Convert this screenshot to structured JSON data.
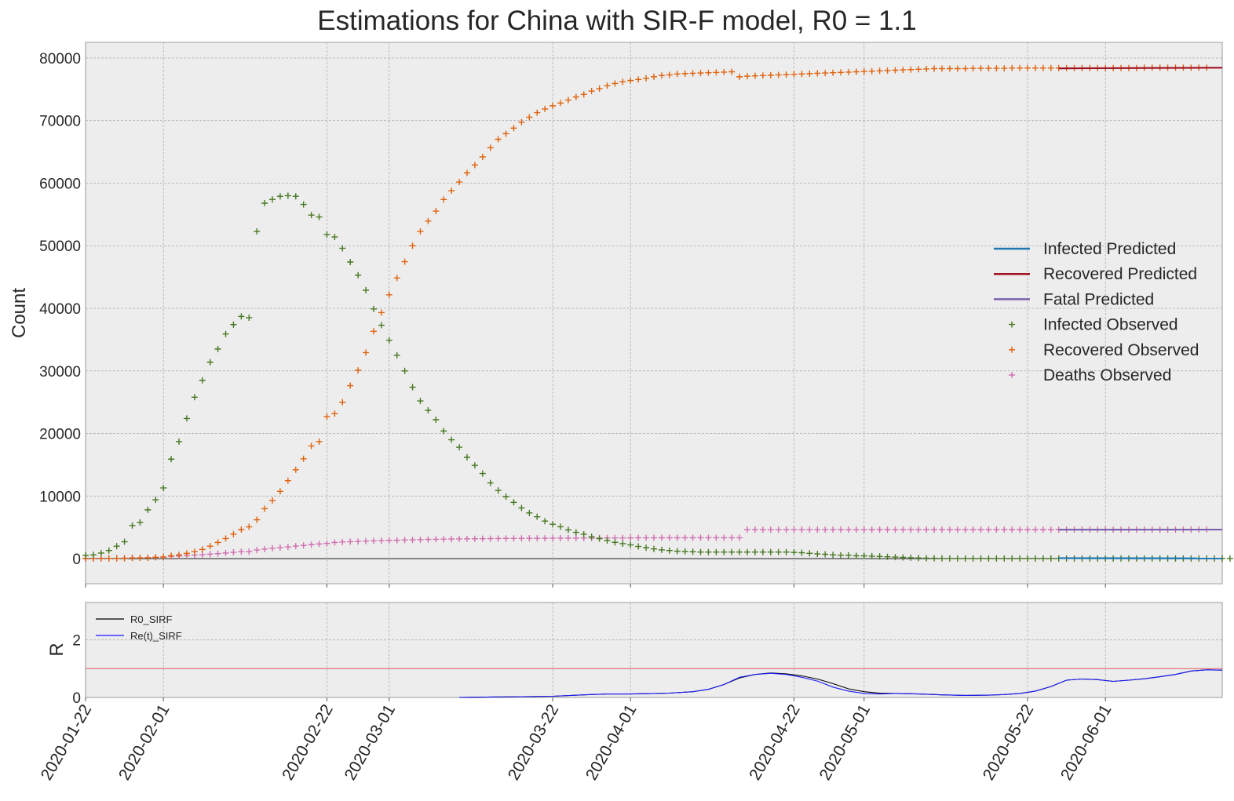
{
  "title": "Estimations for China with SIR-F model, R0 = 1.1",
  "chart_data": [
    {
      "type": "scatter",
      "ylabel": "Count",
      "ylim": [
        -4000,
        82500
      ],
      "yticks": [
        0,
        10000,
        20000,
        30000,
        40000,
        50000,
        60000,
        70000,
        80000
      ],
      "x_start": "2020-01-22",
      "x_end": "2020-06-16",
      "x_end_note_hidden": true,
      "xtick_dates": [
        "2020-01-22",
        "2020-02-01",
        "2020-02-22",
        "2020-03-01",
        "2020-03-22",
        "2020-04-01",
        "2020-04-22",
        "2020-05-01",
        "2020-05-22",
        "2020-06-01"
      ],
      "grid": true,
      "legend_position": "right",
      "legend": [
        {
          "label": "Infected Predicted",
          "kind": "line",
          "color": "#1f77b4"
        },
        {
          "label": "Recovered Predicted",
          "kind": "line",
          "color": "#a00f22"
        },
        {
          "label": "Fatal Predicted",
          "kind": "line",
          "color": "#7b63b0"
        },
        {
          "label": "Infected Observed",
          "kind": "marker",
          "color": "#467821"
        },
        {
          "label": "Recovered Observed",
          "kind": "marker",
          "color": "#e0620d"
        },
        {
          "label": "Deaths Observed",
          "kind": "marker",
          "color": "#d16eb0"
        }
      ],
      "observed_start_date": "2020-01-22",
      "infected_observed": [
        510,
        600,
        900,
        1300,
        2000,
        2700,
        5300,
        5800,
        7800,
        9400,
        11300,
        15900,
        18700,
        22400,
        25800,
        28500,
        31400,
        33500,
        35900,
        37400,
        38700,
        38500,
        52300,
        56800,
        57400,
        57900,
        58000,
        57900,
        56600,
        54900,
        54600,
        51800,
        51400,
        49600,
        47400,
        45300,
        42900,
        39900,
        37300,
        34900,
        32500,
        30000,
        27400,
        25200,
        23700,
        22200,
        20400,
        19000,
        17800,
        16200,
        14900,
        13600,
        12100,
        10900,
        9900,
        9000,
        8100,
        7300,
        6700,
        6000,
        5500,
        5100,
        4600,
        4200,
        3900,
        3500,
        3200,
        2900,
        2600,
        2400,
        2200,
        1950,
        1750,
        1550,
        1400,
        1300,
        1200,
        1150,
        1100,
        1050,
        1050,
        1050,
        1050,
        1050,
        1050,
        1050,
        1050,
        1050,
        1050,
        1050,
        1050,
        1000,
        950,
        850,
        750,
        700,
        600,
        550,
        550,
        450,
        450,
        400,
        350,
        300,
        250,
        200,
        150,
        110,
        80,
        60,
        40,
        30,
        30,
        30,
        30,
        30,
        30,
        30,
        30,
        30,
        30,
        30,
        30,
        30,
        30,
        30,
        30,
        30,
        30,
        30,
        30,
        30,
        30,
        30,
        30,
        30,
        30,
        30,
        30,
        30,
        30,
        30,
        30,
        30,
        30,
        30,
        30,
        30
      ],
      "recovered_observed": [
        28,
        30,
        36,
        39,
        49,
        58,
        101,
        120,
        135,
        214,
        275,
        463,
        614,
        843,
        1115,
        1476,
        1998,
        2595,
        3218,
        3918,
        4635,
        5082,
        6217,
        7977,
        9298,
        10755,
        12462,
        14206,
        15962,
        18014,
        18704,
        22699,
        23170,
        24990,
        27650,
        30084,
        32930,
        36329,
        39320,
        42162,
        44854,
        47450,
        50001,
        52292,
        53944,
        55539,
        57388,
        58804,
        60181,
        61644,
        62901,
        64196,
        65660,
        67017,
        67910,
        68798,
        69755,
        70535,
        71266,
        71857,
        72362,
        72814,
        73280,
        73773,
        74181,
        74720,
        75100,
        75582,
        75923,
        76206,
        76405,
        76565,
        76760,
        77000,
        77200,
        77300,
        77450,
        77500,
        77550,
        77600,
        77650,
        77700,
        77750,
        77800,
        77000,
        77100,
        77150,
        77200,
        77250,
        77300,
        77350,
        77400,
        77450,
        77500,
        77550,
        77600,
        77650,
        77700,
        77750,
        77800,
        77850,
        77900,
        77950,
        78000,
        78050,
        78100,
        78150,
        78200,
        78250,
        78300,
        78300,
        78300,
        78300,
        78300,
        78350,
        78350,
        78350,
        78350,
        78350,
        78400,
        78400,
        78400,
        78400,
        78400,
        78400,
        78400,
        78400,
        78400,
        78400,
        78400,
        78400,
        78400,
        78400,
        78400,
        78400,
        78400,
        78450,
        78450,
        78450,
        78450,
        78450,
        78450,
        78450,
        78450,
        78450
      ],
      "deaths_observed": [
        17,
        18,
        26,
        42,
        56,
        82,
        131,
        133,
        171,
        213,
        259,
        361,
        425,
        490,
        562,
        632,
        717,
        804,
        904,
        1011,
        1111,
        1111,
        1380,
        1523,
        1665,
        1770,
        1868,
        2004,
        2118,
        2236,
        2345,
        2442,
        2592,
        2663,
        2715,
        2744,
        2788,
        2835,
        2870,
        2912,
        2943,
        2981,
        3012,
        3042,
        3070,
        3097,
        3119,
        3136,
        3158,
        3169,
        3176,
        3189,
        3199,
        3213,
        3226,
        3237,
        3245,
        3249,
        3253,
        3259,
        3274,
        3274,
        3281,
        3285,
        3291,
        3296,
        3299,
        3304,
        3308,
        3309,
        3316,
        3322,
        3326,
        3330,
        3333,
        3335,
        3335,
        3337,
        3339,
        3340,
        3340,
        3340,
        3340,
        3340,
        3340,
        4632,
        4632,
        4632,
        4632,
        4632,
        4632,
        4632,
        4632,
        4632,
        4632,
        4632,
        4632,
        4632,
        4632,
        4632,
        4632,
        4633,
        4633,
        4633,
        4633,
        4633,
        4633,
        4633,
        4633,
        4633,
        4633,
        4634,
        4634,
        4634,
        4634,
        4634,
        4634,
        4634,
        4634,
        4634,
        4634,
        4634,
        4634,
        4634,
        4634,
        4634,
        4634,
        4634,
        4634,
        4634,
        4634,
        4634,
        4634,
        4634,
        4634,
        4634,
        4634,
        4634,
        4634,
        4634,
        4634,
        4634,
        4634,
        4634,
        4634
      ],
      "predicted_start_date": "2020-05-26",
      "infected_predicted": [
        {
          "date": "2020-05-26",
          "value": 80
        },
        {
          "date": "2020-06-16",
          "value": 40
        }
      ],
      "recovered_predicted": [
        {
          "date": "2020-05-26",
          "value": 78350
        },
        {
          "date": "2020-06-16",
          "value": 78450
        }
      ],
      "fatal_predicted": [
        {
          "date": "2020-05-26",
          "value": 4634
        },
        {
          "date": "2020-06-16",
          "value": 4640
        }
      ]
    },
    {
      "type": "line",
      "ylabel": "R",
      "ylim": [
        0,
        3.3
      ],
      "yticks": [
        0,
        2
      ],
      "grid": true,
      "legend_position": "top-left",
      "threshold_value": 1.0,
      "threshold_color": "#e06a6a",
      "series": [
        {
          "name": "R0_SIRF",
          "color": "#000000",
          "points": [
            [
              "2020-03-10",
              0.0
            ],
            [
              "2020-03-22",
              0.04
            ],
            [
              "2020-03-26",
              0.09
            ],
            [
              "2020-03-29",
              0.12
            ],
            [
              "2020-04-01",
              0.12
            ],
            [
              "2020-04-03",
              0.13
            ],
            [
              "2020-04-06",
              0.15
            ],
            [
              "2020-04-09",
              0.2
            ],
            [
              "2020-04-11",
              0.28
            ],
            [
              "2020-04-13",
              0.45
            ],
            [
              "2020-04-15",
              0.68
            ],
            [
              "2020-04-17",
              0.8
            ],
            [
              "2020-04-19",
              0.85
            ],
            [
              "2020-04-21",
              0.82
            ],
            [
              "2020-04-23",
              0.75
            ],
            [
              "2020-04-25",
              0.64
            ],
            [
              "2020-04-27",
              0.48
            ],
            [
              "2020-04-29",
              0.3
            ],
            [
              "2020-05-01",
              0.2
            ],
            [
              "2020-05-03",
              0.15
            ],
            [
              "2020-05-05",
              0.14
            ],
            [
              "2020-05-08",
              0.12
            ],
            [
              "2020-05-11",
              0.09
            ],
            [
              "2020-05-14",
              0.07
            ],
            [
              "2020-05-17",
              0.08
            ],
            [
              "2020-05-19",
              0.1
            ],
            [
              "2020-05-21",
              0.14
            ],
            [
              "2020-05-23",
              0.22
            ],
            [
              "2020-05-25",
              0.38
            ],
            [
              "2020-05-27",
              0.6
            ],
            [
              "2020-05-29",
              0.64
            ],
            [
              "2020-05-31",
              0.62
            ],
            [
              "2020-06-02",
              0.56
            ],
            [
              "2020-06-04",
              0.6
            ],
            [
              "2020-06-06",
              0.65
            ],
            [
              "2020-06-08",
              0.72
            ],
            [
              "2020-06-10",
              0.8
            ],
            [
              "2020-06-12",
              0.92
            ],
            [
              "2020-06-14",
              0.96
            ],
            [
              "2020-06-16",
              0.95
            ]
          ]
        },
        {
          "name": "Re(t)_SIRF",
          "color": "#1a1aff",
          "points": [
            [
              "2020-03-10",
              0.0
            ],
            [
              "2020-03-22",
              0.04
            ],
            [
              "2020-03-26",
              0.09
            ],
            [
              "2020-03-29",
              0.12
            ],
            [
              "2020-04-01",
              0.12
            ],
            [
              "2020-04-03",
              0.13
            ],
            [
              "2020-04-06",
              0.15
            ],
            [
              "2020-04-09",
              0.2
            ],
            [
              "2020-04-11",
              0.28
            ],
            [
              "2020-04-13",
              0.45
            ],
            [
              "2020-04-15",
              0.7
            ],
            [
              "2020-04-17",
              0.8
            ],
            [
              "2020-04-19",
              0.84
            ],
            [
              "2020-04-21",
              0.8
            ],
            [
              "2020-04-23",
              0.7
            ],
            [
              "2020-04-25",
              0.57
            ],
            [
              "2020-04-27",
              0.36
            ],
            [
              "2020-04-29",
              0.22
            ],
            [
              "2020-05-01",
              0.14
            ],
            [
              "2020-05-03",
              0.12
            ],
            [
              "2020-05-05",
              0.14
            ],
            [
              "2020-05-08",
              0.12
            ],
            [
              "2020-05-11",
              0.09
            ],
            [
              "2020-05-14",
              0.07
            ],
            [
              "2020-05-17",
              0.08
            ],
            [
              "2020-05-19",
              0.1
            ],
            [
              "2020-05-21",
              0.14
            ],
            [
              "2020-05-23",
              0.22
            ],
            [
              "2020-05-25",
              0.38
            ],
            [
              "2020-05-27",
              0.6
            ],
            [
              "2020-05-29",
              0.64
            ],
            [
              "2020-05-31",
              0.62
            ],
            [
              "2020-06-02",
              0.56
            ],
            [
              "2020-06-04",
              0.6
            ],
            [
              "2020-06-06",
              0.65
            ],
            [
              "2020-06-08",
              0.72
            ],
            [
              "2020-06-10",
              0.8
            ],
            [
              "2020-06-12",
              0.92
            ],
            [
              "2020-06-14",
              0.96
            ],
            [
              "2020-06-16",
              0.95
            ]
          ]
        }
      ]
    }
  ]
}
